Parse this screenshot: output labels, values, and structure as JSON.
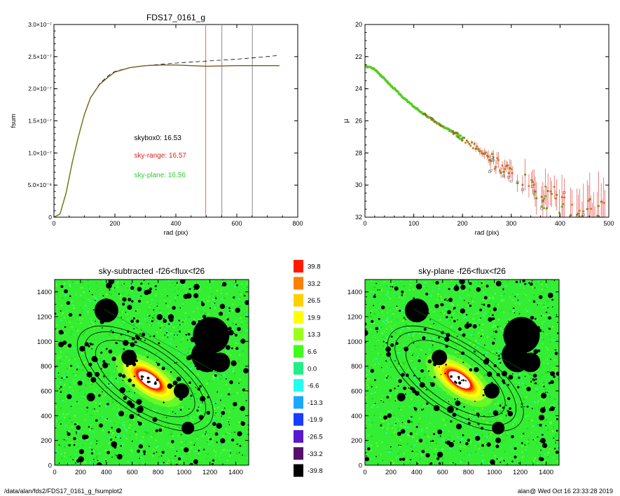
{
  "footer": {
    "path": "/data/alan/fds2/FDS17_0161_g_fsumplot2",
    "stamp": "alan@  Wed Oct 16 23:33:28 2019"
  },
  "chart_data": [
    {
      "id": "fsum",
      "type": "line",
      "title": "FDS17_0161_g",
      "xlabel": "rad (pix)",
      "ylabel": "fsum",
      "xlim": [
        0,
        800
      ],
      "ylim": [
        0,
        3e-07
      ],
      "xticks": [
        "0",
        "200",
        "400",
        "600",
        "800"
      ],
      "yticks": [
        "0",
        "5.0×10⁻⁸",
        "1.0×10⁻⁷",
        "1.5×10⁻⁷",
        "2.0×10⁻⁷",
        "2.5×10⁻⁷",
        "3.0×10⁻⁷"
      ],
      "series": [
        {
          "style": "dashed",
          "color": "#000000",
          "x": [
            0,
            20,
            40,
            60,
            80,
            100,
            120,
            150,
            180,
            200,
            250,
            300,
            400,
            500,
            600,
            700,
            740
          ],
          "y": [
            0,
            5e-09,
            3.8e-08,
            8.5e-08,
            1.25e-07,
            1.6e-07,
            1.86e-07,
            2.08e-07,
            2.21e-07,
            2.27e-07,
            2.33e-07,
            2.36e-07,
            2.4e-07,
            2.43e-07,
            2.46e-07,
            2.5e-07,
            2.52e-07
          ]
        },
        {
          "style": "solid",
          "color": "#7a5a1e",
          "x": [
            0,
            20,
            40,
            60,
            80,
            100,
            120,
            150,
            180,
            200,
            250,
            300,
            350,
            400,
            450,
            500,
            600,
            700,
            740
          ],
          "y": [
            0,
            5e-09,
            3.8e-08,
            8.5e-08,
            1.25e-07,
            1.6e-07,
            1.86e-07,
            2.07e-07,
            2.19e-07,
            2.26e-07,
            2.33e-07,
            2.36e-07,
            2.37e-07,
            2.37e-07,
            2.36e-07,
            2.35e-07,
            2.36e-07,
            2.36e-07,
            2.36e-07
          ]
        }
      ],
      "vlines": [
        {
          "x": 498,
          "color": "#e06666"
        },
        {
          "x": 551,
          "color": "#888888"
        },
        {
          "x": 651,
          "color": "#888888"
        }
      ],
      "annotations": [
        {
          "text": "skybox0: 16.53",
          "color": "#000000",
          "x": 300,
          "y": 1.2e-07
        },
        {
          "text": "sky-range: 16.57",
          "color": "#e02020",
          "x": 300,
          "y": 9.3e-08
        },
        {
          "text": "sky-plane: 16.56",
          "color": "#33cc33",
          "x": 300,
          "y": 6.2e-08
        }
      ]
    },
    {
      "id": "mu",
      "type": "scatter",
      "xlabel": "rad (pix)",
      "ylabel": "μ",
      "xlim": [
        0,
        500
      ],
      "ylim": [
        32,
        20
      ],
      "xticks": [
        "0",
        "100",
        "200",
        "300",
        "400",
        "500"
      ],
      "yticks": [
        "20",
        "22",
        "24",
        "26",
        "28",
        "30",
        "32"
      ],
      "profile": {
        "x": [
          0,
          10,
          20,
          30,
          40,
          60,
          80,
          100,
          120,
          140,
          160,
          180,
          200,
          220,
          240,
          260,
          280,
          300,
          320,
          340,
          360,
          380,
          420,
          460,
          500
        ],
        "y": [
          22.6,
          22.65,
          22.8,
          23.1,
          23.4,
          24.0,
          24.6,
          25.1,
          25.55,
          25.95,
          26.35,
          26.7,
          27.05,
          27.5,
          27.9,
          28.4,
          28.9,
          29.4,
          29.9,
          30.2,
          30.5,
          30.8,
          31.2,
          31.5,
          31.8
        ]
      },
      "colors": {
        "green": "#55cc22",
        "orange": "#d87a1a",
        "red": "#e03030",
        "gray": "#666666"
      }
    },
    {
      "id": "colorbar",
      "type": "heatmap",
      "levels": [
        {
          "label": "39.8",
          "color": "#ff1a00"
        },
        {
          "label": "33.2",
          "color": "#ff8000"
        },
        {
          "label": "26.5",
          "color": "#ffd000"
        },
        {
          "label": "19.9",
          "color": "#ffff00"
        },
        {
          "label": "13.3",
          "color": "#9cff1a"
        },
        {
          "label": "6.6",
          "color": "#3cff1a"
        },
        {
          "label": "0.0",
          "color": "#22ee88"
        },
        {
          "label": "-6.6",
          "color": "#22ffee"
        },
        {
          "label": "-13.3",
          "color": "#1aa8ff"
        },
        {
          "label": "-19.9",
          "color": "#1a3cff"
        },
        {
          "label": "-26.5",
          "color": "#5a1acc"
        },
        {
          "label": "-33.2",
          "color": "#55116a"
        },
        {
          "label": "-39.8",
          "color": "#000000"
        }
      ]
    },
    {
      "id": "sky-subtracted",
      "type": "heatmap",
      "title": "sky-subtracted -f26<flux<f26",
      "xlim": [
        0,
        1500
      ],
      "ylim": [
        0,
        1500
      ],
      "xticks": [
        "0",
        "200",
        "400",
        "600",
        "800",
        "1000",
        "1200",
        "1400"
      ],
      "yticks": [
        "0",
        "200",
        "400",
        "600",
        "800",
        "1000",
        "1200",
        "1400"
      ]
    },
    {
      "id": "sky-plane",
      "type": "heatmap",
      "title": "sky-plane -f26<flux<f26",
      "xlim": [
        0,
        1500
      ],
      "ylim": [
        0,
        1500
      ],
      "xticks": [
        "0",
        "200",
        "400",
        "600",
        "800",
        "1000",
        "1200",
        "1400"
      ],
      "yticks": [
        "0",
        "200",
        "400",
        "600",
        "800",
        "1000",
        "1200",
        "1400"
      ]
    }
  ]
}
